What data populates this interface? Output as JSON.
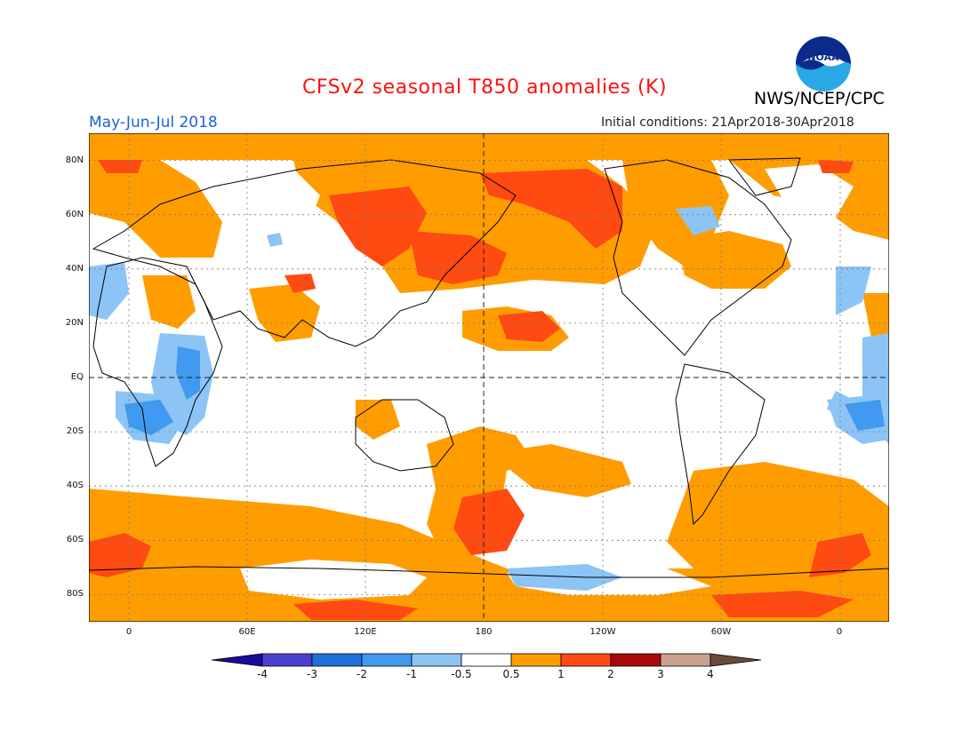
{
  "header": {
    "title": "CFSv2 seasonal T850 anomalies (K)",
    "period": "May-Jun-Jul 2018",
    "initial_conditions": "Initial conditions: 21Apr2018-30Apr2018",
    "organization": "NWS/NCEP/CPC",
    "logo_text": "NOAA"
  },
  "axes": {
    "lat_labels": [
      "80N",
      "60N",
      "40N",
      "20N",
      "EQ",
      "20S",
      "40S",
      "60S",
      "80S"
    ],
    "lon_labels": [
      "0",
      "60E",
      "120E",
      "180",
      "120W",
      "60W",
      "0"
    ]
  },
  "colorbar": {
    "labels": [
      "-4",
      "-3",
      "-2",
      "-1",
      "-0.5",
      "0.5",
      "1",
      "2",
      "3",
      "4"
    ],
    "colors": [
      "#1c0a9c",
      "#4a3fd0",
      "#1f6fd8",
      "#3f9af0",
      "#8cc4f6",
      "#ffffff",
      "#ff9d00",
      "#ff4a12",
      "#a80808",
      "#caa08f",
      "#6b4a3a"
    ]
  },
  "colors": {
    "anomaly_plus_0_5": "#ff9d00",
    "anomaly_plus_1": "#ff4a12",
    "anomaly_minus_0_5": "#8cc4f6",
    "anomaly_minus_1": "#3f9af0",
    "coastline": "#000000"
  }
}
